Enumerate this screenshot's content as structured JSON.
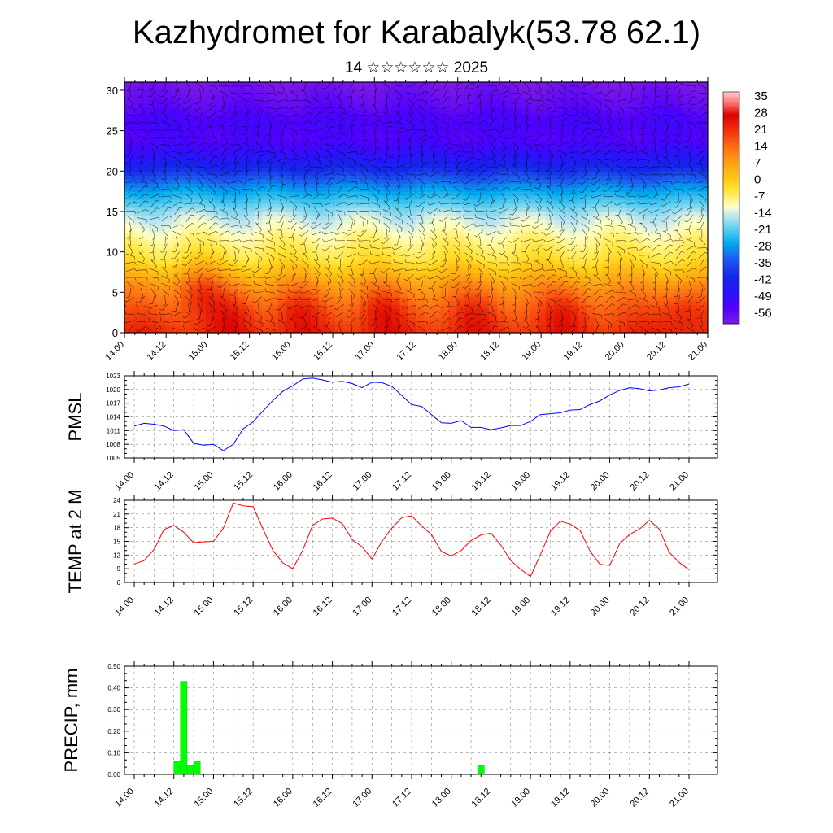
{
  "header": {
    "title": "Kazhydromet for Karabalyk(53.78 62.1)",
    "subtitle": "14 ☆☆☆☆☆☆ 2025"
  },
  "chart_data": [
    {
      "type": "heatmap",
      "name": "vertical-temperature-wind-section",
      "title": "",
      "xlabel": "",
      "ylabel": "",
      "x_ticks": [
        "14.00",
        "14.12",
        "15.00",
        "15.12",
        "16.00",
        "16.12",
        "17.00",
        "17.12",
        "18.00",
        "18.12",
        "19.00",
        "19.12",
        "20.00",
        "20.12",
        "21.00"
      ],
      "ylim": [
        0,
        31
      ],
      "y_ticks": [
        0,
        5,
        10,
        15,
        20,
        25,
        30
      ],
      "colorbar": {
        "labels": [
          "35",
          "28",
          "21",
          "14",
          "7",
          "0",
          "-7",
          "-14",
          "-21",
          "-28",
          "-35",
          "-42",
          "-49",
          "-56"
        ],
        "range": [
          -63,
          38
        ]
      },
      "temperature_profile": [
        {
          "height": 0,
          "temp": 22
        },
        {
          "height": 3,
          "temp": 16
        },
        {
          "height": 6,
          "temp": 8
        },
        {
          "height": 9,
          "temp": -4
        },
        {
          "height": 12,
          "temp": -10
        },
        {
          "height": 14.5,
          "temp": -16
        },
        {
          "height": 16,
          "temp": -22
        },
        {
          "height": 18,
          "temp": -30
        },
        {
          "height": 20,
          "temp": -40
        },
        {
          "height": 22,
          "temp": -50
        },
        {
          "height": 24,
          "temp": -56
        },
        {
          "height": 26,
          "temp": -54
        },
        {
          "height": 28,
          "temp": -58
        },
        {
          "height": 31,
          "temp": -62
        }
      ],
      "warm_cells": [
        {
          "day": 0.9,
          "height": 5.5,
          "anomaly": 10
        },
        {
          "day": 1.3,
          "height": 2.5,
          "anomaly": 6
        },
        {
          "day": 2.1,
          "height": 3,
          "anomaly": 6
        },
        {
          "day": 3.1,
          "height": 3,
          "anomaly": 7
        },
        {
          "day": 4.2,
          "height": 3,
          "anomaly": 5
        },
        {
          "day": 5.3,
          "height": 3,
          "anomaly": 6
        },
        {
          "day": 6.7,
          "height": 3,
          "anomaly": 7
        }
      ]
    },
    {
      "type": "line",
      "name": "pmsl",
      "ylabel": "PMSL",
      "x_ticks": [
        "14.00",
        "14.12",
        "15.00",
        "15.12",
        "16.00",
        "16.12",
        "17.00",
        "17.12",
        "18.00",
        "18.12",
        "19.00",
        "19.12",
        "20.00",
        "20.12",
        "21.00"
      ],
      "ylim": [
        1005,
        1023
      ],
      "y_ticks": [
        1005,
        1008,
        1011,
        1014,
        1017,
        1020,
        1023
      ],
      "grid": true,
      "series": [
        {
          "color": "#0000ff",
          "values": [
            1012.0,
            1012.6,
            1012.4,
            1012.0,
            1011.0,
            1011.2,
            1008.2,
            1007.8,
            1008.0,
            1006.6,
            1008.0,
            1011.4,
            1012.9,
            1015.3,
            1017.6,
            1019.6,
            1020.8,
            1022.3,
            1022.5,
            1022.1,
            1021.6,
            1021.8,
            1021.3,
            1020.4,
            1021.6,
            1021.5,
            1020.7,
            1018.7,
            1016.7,
            1016.3,
            1014.5,
            1012.7,
            1012.6,
            1013.2,
            1011.7,
            1011.7,
            1011.2,
            1011.6,
            1012.1,
            1012.1,
            1013.0,
            1014.5,
            1014.7,
            1014.9,
            1015.5,
            1015.6,
            1016.7,
            1017.5,
            1018.8,
            1019.8,
            1020.4,
            1020.2,
            1019.7,
            1019.9,
            1020.4,
            1020.6,
            1021.2
          ]
        }
      ]
    },
    {
      "type": "line",
      "name": "temp-2m",
      "ylabel": "TEMP at 2 M",
      "x_ticks": [
        "14.00",
        "14.12",
        "15.00",
        "15.12",
        "16.00",
        "16.12",
        "17.00",
        "17.12",
        "18.00",
        "18.12",
        "19.00",
        "19.12",
        "20.00",
        "20.12",
        "21.00"
      ],
      "ylim": [
        6,
        24
      ],
      "y_ticks": [
        6,
        9,
        12,
        15,
        18,
        21,
        24
      ],
      "grid": true,
      "series": [
        {
          "color": "#ff0000",
          "values": [
            10.0,
            10.8,
            13.2,
            17.6,
            18.5,
            17.0,
            14.7,
            14.9,
            15.0,
            17.9,
            23.4,
            22.8,
            22.6,
            17.7,
            13.0,
            10.3,
            9.0,
            13.0,
            18.5,
            19.9,
            20.1,
            18.9,
            15.4,
            13.8,
            11.1,
            15.0,
            17.9,
            20.2,
            20.6,
            18.4,
            16.5,
            12.8,
            11.8,
            13.0,
            15.2,
            16.4,
            16.8,
            14.2,
            10.8,
            8.9,
            7.3,
            12.1,
            17.2,
            19.4,
            18.8,
            17.4,
            12.9,
            10.0,
            9.7,
            14.5,
            16.5,
            17.7,
            19.6,
            17.7,
            12.6,
            10.4,
            8.8
          ]
        }
      ]
    },
    {
      "type": "bar",
      "name": "precipitation",
      "ylabel": "PRECIP, mm",
      "x_ticks": [
        "14.00",
        "14.12",
        "15.00",
        "15.12",
        "16.00",
        "16.12",
        "17.00",
        "17.12",
        "18.00",
        "18.12",
        "19.00",
        "19.12",
        "20.00",
        "20.12",
        "21.00"
      ],
      "ylim": [
        0,
        0.5
      ],
      "y_ticks": [
        "0.00",
        "0.10",
        "0.20",
        "0.30",
        "0.40",
        "0.50"
      ],
      "grid": true,
      "bar_color": "#00ff00",
      "bars": [
        {
          "start_step": 12,
          "end_step": 14,
          "value": 0.06
        },
        {
          "start_step": 14,
          "end_step": 16,
          "value": 0.43
        },
        {
          "start_step": 16,
          "end_step": 18,
          "value": 0.04
        },
        {
          "start_step": 18,
          "end_step": 20,
          "value": 0.06
        },
        {
          "start_step": 104,
          "end_step": 106,
          "value": 0.04
        }
      ]
    }
  ]
}
